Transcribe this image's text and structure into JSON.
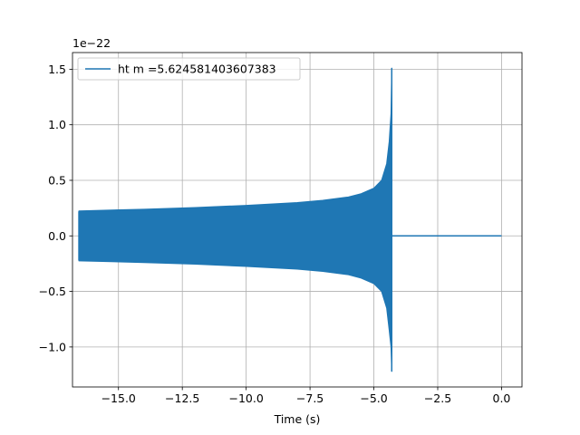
{
  "chart_data": {
    "type": "line",
    "title": "",
    "xlabel": "Time (s)",
    "ylabel": "",
    "y_scale_label": "1e−22",
    "xlim": [
      -16.8,
      0.8
    ],
    "ylim": [
      -1.36,
      1.65
    ],
    "x_ticks": [
      -15.0,
      -12.5,
      -10.0,
      -7.5,
      -5.0,
      -2.5,
      0.0
    ],
    "x_tick_labels": [
      "−15.0",
      "−12.5",
      "−10.0",
      "−7.5",
      "−5.0",
      "−2.5",
      "0.0"
    ],
    "y_ticks": [
      -1.0,
      -0.5,
      0.0,
      0.5,
      1.0,
      1.5
    ],
    "y_tick_labels": [
      "−1.0",
      "−0.5",
      "0.0",
      "0.5",
      "1.0",
      "1.5"
    ],
    "grid": true,
    "legend_position": "upper-left",
    "series": [
      {
        "name": "ht m =5.624581403607383",
        "color": "#1f77b4",
        "t_start": -16.55,
        "t_merger": -4.3,
        "t_end": 0.0,
        "start_amplitude": 0.22,
        "envelope_upper": [
          [
            -16.55,
            0.225
          ],
          [
            -14.0,
            0.24
          ],
          [
            -12.0,
            0.255
          ],
          [
            -10.0,
            0.275
          ],
          [
            -8.0,
            0.3
          ],
          [
            -7.0,
            0.32
          ],
          [
            -6.0,
            0.35
          ],
          [
            -5.5,
            0.38
          ],
          [
            -5.0,
            0.43
          ],
          [
            -4.7,
            0.5
          ],
          [
            -4.5,
            0.65
          ],
          [
            -4.4,
            0.85
          ],
          [
            -4.33,
            1.1
          ],
          [
            -4.3,
            1.51
          ]
        ],
        "envelope_lower": [
          [
            -16.55,
            -0.225
          ],
          [
            -14.0,
            -0.24
          ],
          [
            -12.0,
            -0.255
          ],
          [
            -10.0,
            -0.275
          ],
          [
            -8.0,
            -0.3
          ],
          [
            -7.0,
            -0.32
          ],
          [
            -6.0,
            -0.35
          ],
          [
            -5.5,
            -0.38
          ],
          [
            -5.0,
            -0.43
          ],
          [
            -4.7,
            -0.5
          ],
          [
            -4.5,
            -0.65
          ],
          [
            -4.4,
            -0.85
          ],
          [
            -4.33,
            -1.0
          ],
          [
            -4.3,
            -1.22
          ]
        ],
        "post_merger_value": 0.0
      }
    ]
  }
}
